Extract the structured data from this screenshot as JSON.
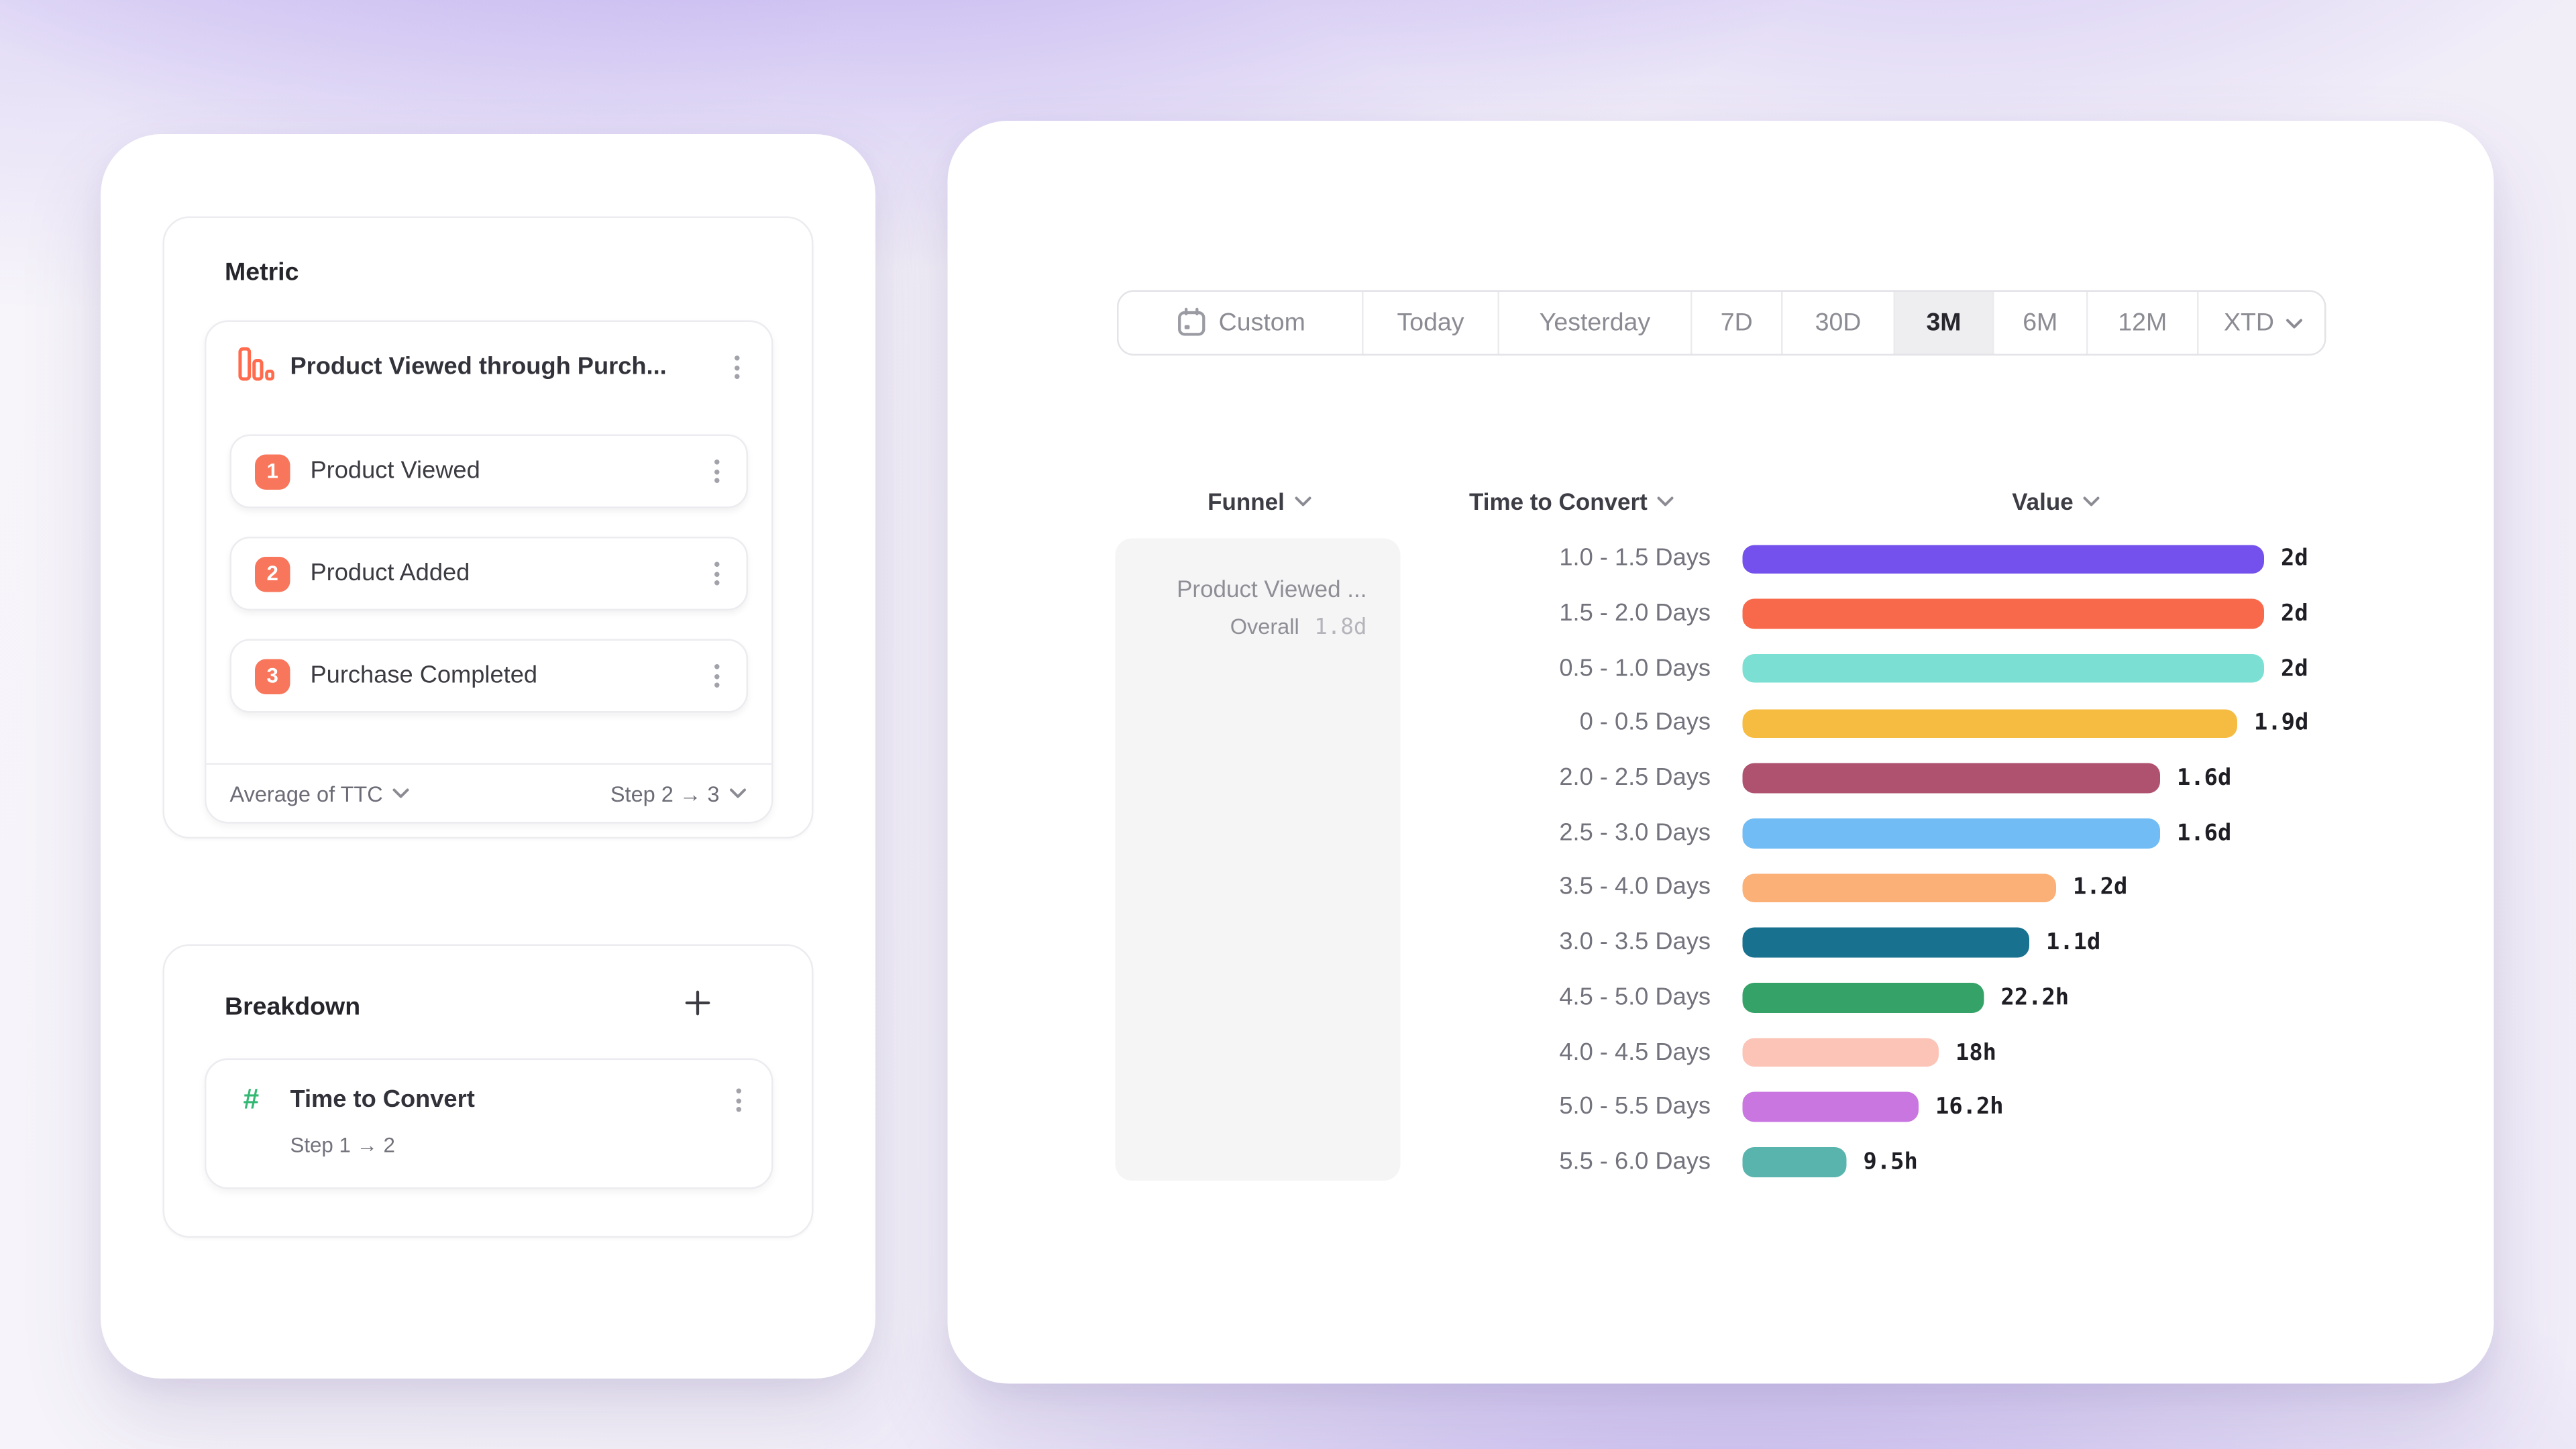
{
  "left_panel": {
    "metric": {
      "heading": "Metric",
      "funnel_name": "Product Viewed through Purch...",
      "funnel_icon_color": "#FF6B4C",
      "step_badge_color": "#F8765B",
      "steps": [
        {
          "number": "1",
          "label": "Product Viewed"
        },
        {
          "number": "2",
          "label": "Product Added"
        },
        {
          "number": "3",
          "label": "Purchase Completed"
        }
      ],
      "aggregation_label": "Average of TTC",
      "step_range_label": "Step 2 → 3"
    },
    "breakdown": {
      "heading": "Breakdown",
      "add_button": "+",
      "hash_icon_color": "#35B873",
      "property_label": "Time to Convert",
      "property_sublabel": "Step 1 → 2"
    }
  },
  "right_panel": {
    "date_picker": {
      "selected": "3M",
      "options": [
        {
          "label": "Custom",
          "icon": "calendar-icon"
        },
        {
          "label": "Today"
        },
        {
          "label": "Yesterday"
        },
        {
          "label": "7D"
        },
        {
          "label": "30D"
        },
        {
          "label": "3M",
          "selected": true
        },
        {
          "label": "6M"
        },
        {
          "label": "12M"
        },
        {
          "label": "XTD",
          "chevron": true
        }
      ]
    },
    "columns": {
      "funnel": "Funnel",
      "time_to_convert": "Time to Convert",
      "value": "Value"
    },
    "funnel_cell": {
      "name": "Product Viewed ...",
      "overall_label": "Overall",
      "overall_value": "1.8d"
    }
  },
  "chart_data": {
    "type": "bar",
    "orientation": "horizontal",
    "title": "Time to Convert breakdown",
    "xlabel": "Value",
    "ylabel": "Time to Convert",
    "x_range_hours": [
      0,
      48
    ],
    "grid": false,
    "legend": "none",
    "categories": [
      "1.0 - 1.5 Days",
      "1.5 - 2.0 Days",
      "0.5 - 1.0 Days",
      "0 - 0.5 Days",
      "2.0 - 2.5 Days",
      "2.5 - 3.0 Days",
      "3.5 - 4.0 Days",
      "3.0 - 3.5 Days",
      "4.5 - 5.0 Days",
      "4.0 - 4.5 Days",
      "5.0 - 5.5 Days",
      "5.5 - 6.0 Days"
    ],
    "values_label": [
      "2d",
      "2d",
      "2d",
      "1.9d",
      "1.6d",
      "1.6d",
      "1.2d",
      "1.1d",
      "22.2h",
      "18h",
      "16.2h",
      "9.5h"
    ],
    "values_hours": [
      48,
      48,
      48,
      45.6,
      38.4,
      38.4,
      28.8,
      26.4,
      22.2,
      18,
      16.2,
      9.5
    ],
    "bar_colors": [
      "#7450EC",
      "#F8684A",
      "#7BE0D3",
      "#F6BC41",
      "#AF5270",
      "#71BCF4",
      "#FBB078",
      "#17718F",
      "#35A267",
      "#FCC3B7",
      "#C976E0",
      "#59B4AE"
    ]
  }
}
